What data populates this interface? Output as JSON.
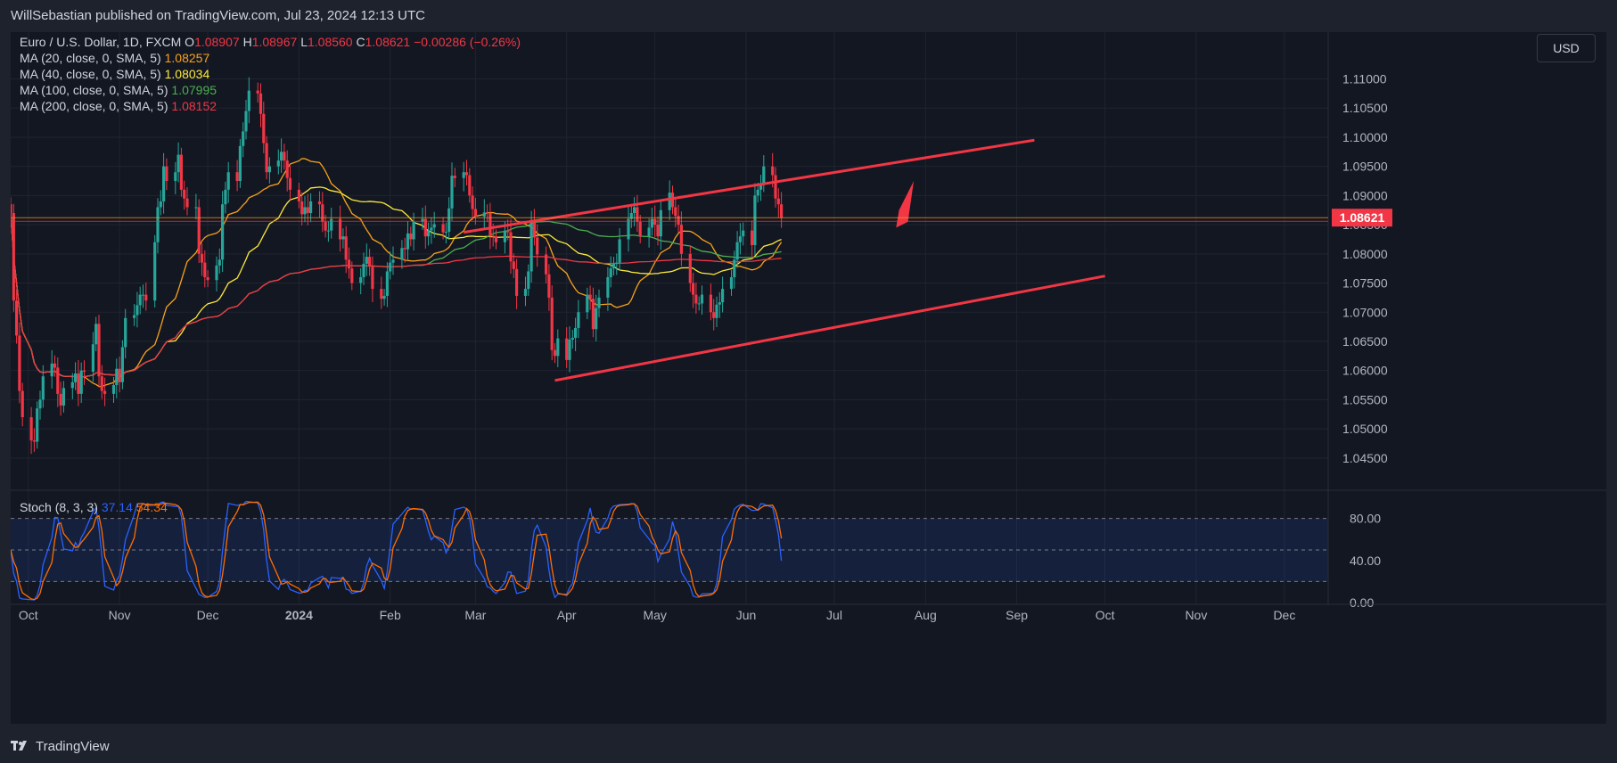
{
  "header": {
    "published": "WillSebastian published on TradingView.com, Jul 23, 2024 12:13 UTC"
  },
  "footer": {
    "brand": "TradingView",
    "logo_icon": "tradingview-logo-icon"
  },
  "price_scale": {
    "currency_button": "USD"
  },
  "legend": {
    "symbol": "Euro / U.S. Dollar, 1D, FXCM",
    "o_label": "O",
    "o_value": "1.08907",
    "h_label": "H",
    "h_value": "1.08967",
    "l_label": "L",
    "l_value": "1.08560",
    "c_label": "C",
    "c_value": "1.08621",
    "change": "−0.00286 (−0.26%)",
    "ma": [
      {
        "label": "MA (20, close, 0, SMA, 5)",
        "value": "1.08257",
        "color": "#f7a21b"
      },
      {
        "label": "MA (40, close, 0, SMA, 5)",
        "value": "1.08034",
        "color": "#fdea3b"
      },
      {
        "label": "MA (100, close, 0, SMA, 5)",
        "value": "1.07995",
        "color": "#4caf50"
      },
      {
        "label": "MA (200, close, 0, SMA, 5)",
        "value": "1.08152",
        "color": "#f23645"
      }
    ]
  },
  "stoch_legend": {
    "label": "Stoch (8, 3, 3)",
    "k_value": "37.14",
    "d_value": "54.34"
  },
  "colors": {
    "up": "#26a69a",
    "down": "#f23645",
    "stoch_k": "#2962ff",
    "stoch_d": "#ff6d00",
    "annotation": "#f23645",
    "price_line": "#f7a21b"
  },
  "chart_data": {
    "type": "candlestick",
    "symbol": "EURUSD",
    "timeframe": "1D",
    "x_ticks": [
      "Oct",
      "Nov",
      "Dec",
      "2024",
      "Feb",
      "Mar",
      "Apr",
      "May",
      "Jun",
      "Jul",
      "Aug",
      "Sep",
      "Oct",
      "Nov",
      "Dec"
    ],
    "y_ticks": [
      "1.11000",
      "1.10500",
      "1.10000",
      "1.09500",
      "1.09000",
      "1.08500",
      "1.08000",
      "1.07500",
      "1.07000",
      "1.06500",
      "1.06000",
      "1.05500",
      "1.05000",
      "1.04500"
    ],
    "y_range": [
      1.041,
      1.1165
    ],
    "last_price": "1.08621",
    "close_series_start": "2023-09-25",
    "close_series": [
      1.087,
      1.072,
      1.066,
      1.0565,
      1.052,
      1.048,
      1.0478,
      1.0535,
      1.055,
      1.059,
      1.0612,
      1.0605,
      1.056,
      1.054,
      1.057,
      1.058,
      1.0595,
      1.056,
      1.06,
      1.0598,
      1.0645,
      1.068,
      1.059,
      1.0565,
      1.056,
      1.0575,
      1.0603,
      1.058,
      1.064,
      1.069,
      1.0695,
      1.0712,
      1.073,
      1.073,
      1.072,
      1.082,
      1.088,
      1.089,
      1.095,
      1.0925,
      1.094,
      1.097,
      1.091,
      1.0895,
      1.088,
      1.088,
      1.08,
      1.0785,
      1.076,
      1.0755,
      1.078,
      1.079,
      1.0885,
      1.091,
      1.094,
      1.0925,
      1.0985,
      1.101,
      1.1045,
      1.108,
      1.1075,
      1.104,
      1.099,
      1.094,
      1.095,
      1.096,
      1.0975,
      1.096,
      1.093,
      1.091,
      1.089,
      1.0868,
      1.088,
      1.087,
      1.089,
      1.0885,
      1.0855,
      1.084,
      1.084,
      1.086,
      1.0825,
      1.083,
      1.079,
      1.0775,
      1.075,
      1.076,
      1.0783,
      1.0795,
      1.0778,
      1.074,
      1.0723,
      1.0728,
      1.077,
      1.0785,
      1.079,
      1.081,
      1.0808,
      1.0835,
      1.0825,
      1.0855,
      1.086,
      1.083,
      1.084,
      1.0845,
      1.0851,
      1.0837,
      1.0838,
      1.0878,
      1.0934,
      1.093,
      1.094,
      1.0935,
      1.09,
      1.0877,
      1.0864,
      1.0871,
      1.087,
      1.0831,
      1.083,
      1.082,
      1.084,
      1.0837,
      1.0787,
      1.0774,
      1.0728,
      1.074,
      1.077,
      1.0858,
      1.0828,
      1.0799,
      1.0765,
      1.0725,
      1.0635,
      1.0625,
      1.0655,
      1.0618,
      1.0653,
      1.0656,
      1.0673,
      1.07,
      1.073,
      1.0723,
      1.0671,
      1.0707,
      1.0725,
      1.076,
      1.0775,
      1.0783,
      1.0785,
      1.0825,
      1.086,
      1.087,
      1.088,
      1.0855,
      1.083,
      1.0845,
      1.086,
      1.085,
      1.083,
      1.0875,
      1.0905,
      1.088,
      1.0865,
      1.085,
      1.08,
      1.075,
      1.073,
      1.0715,
      1.0715,
      1.073,
      1.07,
      1.069,
      1.0713,
      1.0717,
      1.074,
      1.076,
      1.079,
      1.082,
      1.083,
      1.084,
      1.0815,
      1.09,
      1.091,
      1.092,
      1.095,
      1.0935,
      1.0895,
      1.0885,
      1.0862
    ],
    "moving_averages": [
      {
        "name": "MA (20, close, 0, SMA, 5)",
        "last": 1.08257
      },
      {
        "name": "MA (40, close, 0, SMA, 5)",
        "last": 1.08034
      },
      {
        "name": "MA (100, close, 0, SMA, 5)",
        "last": 1.07995
      },
      {
        "name": "MA (200, close, 0, SMA, 5)",
        "last": 1.08152
      }
    ],
    "stochastic": {
      "params": "(8, 3, 3)",
      "k": 37.14,
      "d": 54.34,
      "y_ticks": [
        "80.00",
        "40.00",
        "0.00"
      ],
      "levels": [
        80,
        50,
        20
      ]
    },
    "grid": true
  }
}
